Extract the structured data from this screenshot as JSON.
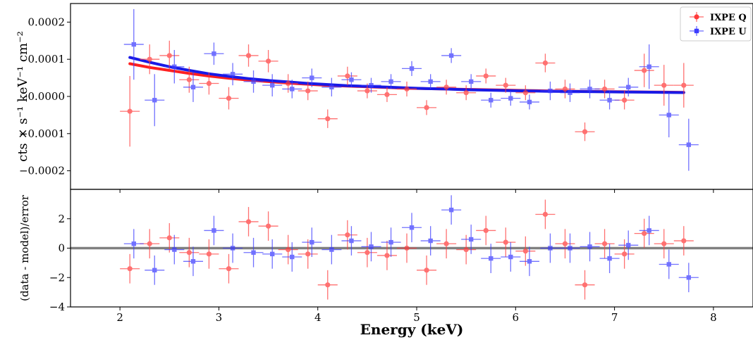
{
  "chart_data": {
    "type": "scatter",
    "xlabel": "Energy (keV)",
    "xlim": [
      1.5,
      8.4
    ],
    "xticks": [
      2,
      3,
      4,
      5,
      6,
      7,
      8
    ],
    "legend": {
      "placement": "top-right"
    },
    "panels": [
      {
        "name": "top",
        "ylabel": "cts × s⁻¹ keV⁻¹ cm⁻²",
        "ylim": [
          -0.00025,
          0.00025
        ],
        "yticks": [
          -0.0002,
          -0.0001,
          0.0,
          0.0001,
          0.0002
        ],
        "ytick_labels": [
          "−0.0002",
          "−0.0001",
          "0.0000",
          "0.0001",
          "0.0002"
        ],
        "series": [
          {
            "name": "IXPE Q",
            "color": "#ff3b3b",
            "marker": "circle",
            "x": [
              2.1,
              2.3,
              2.5,
              2.7,
              2.9,
              3.1,
              3.3,
              3.5,
              3.7,
              3.9,
              4.1,
              4.3,
              4.5,
              4.7,
              4.9,
              5.1,
              5.3,
              5.5,
              5.7,
              5.9,
              6.1,
              6.3,
              6.5,
              6.7,
              6.9,
              7.1,
              7.3,
              7.5,
              7.7
            ],
            "y": [
              -4e-05,
              0.0001,
              0.00011,
              4.5e-05,
              3.5e-05,
              -5e-06,
              0.00011,
              9.5e-05,
              3.5e-05,
              1.5e-05,
              -6e-05,
              5.5e-05,
              1.5e-05,
              5e-06,
              2e-05,
              -3e-05,
              2.5e-05,
              1e-05,
              5.5e-05,
              3e-05,
              1e-05,
              9e-05,
              2e-05,
              -9.5e-05,
              2e-05,
              -1e-05,
              7e-05,
              3e-05,
              3e-05
            ],
            "xerr": 0.1,
            "yerr": [
              9.5e-05,
              4e-05,
              4e-05,
              3.5e-05,
              3e-05,
              3e-05,
              3e-05,
              3e-05,
              2.5e-05,
              2.5e-05,
              2.5e-05,
              2.5e-05,
              2e-05,
              2e-05,
              2e-05,
              2e-05,
              2e-05,
              2e-05,
              2e-05,
              2e-05,
              2e-05,
              2.5e-05,
              2.5e-05,
              2.5e-05,
              2.5e-05,
              2.5e-05,
              4.5e-05,
              5.5e-05,
              6e-05
            ]
          },
          {
            "name": "IXPE U",
            "color": "#3b3bff",
            "marker": "square",
            "x": [
              2.14,
              2.35,
              2.55,
              2.74,
              2.95,
              3.14,
              3.35,
              3.54,
              3.74,
              3.94,
              4.14,
              4.34,
              4.54,
              4.74,
              4.95,
              5.14,
              5.35,
              5.55,
              5.75,
              5.95,
              6.14,
              6.35,
              6.55,
              6.75,
              6.95,
              7.14,
              7.35,
              7.55,
              7.75
            ],
            "y": [
              0.00014,
              -1e-05,
              8e-05,
              2.5e-05,
              0.000115,
              6e-05,
              4e-05,
              3e-05,
              2e-05,
              5e-05,
              2.5e-05,
              4.5e-05,
              3e-05,
              4e-05,
              7.5e-05,
              4e-05,
              0.00011,
              4e-05,
              -1e-05,
              -5e-06,
              -1.5e-05,
              1.5e-05,
              1e-05,
              2e-05,
              -1e-05,
              2.5e-05,
              8e-05,
              -5e-05,
              -0.00013
            ],
            "xerr": 0.1,
            "yerr": [
              9.5e-05,
              7e-05,
              4.5e-05,
              4e-05,
              3e-05,
              3e-05,
              3e-05,
              3e-05,
              2.5e-05,
              2.5e-05,
              2.5e-05,
              2e-05,
              2e-05,
              2e-05,
              2e-05,
              2e-05,
              2e-05,
              2e-05,
              2e-05,
              2e-05,
              2e-05,
              2.5e-05,
              2.5e-05,
              2.5e-05,
              2.5e-05,
              2.5e-05,
              6e-05,
              6e-05,
              7e-05
            ]
          }
        ],
        "model_lines": [
          {
            "color": "#ff2020",
            "x": [
              2.1,
              2.3,
              2.5,
              2.7,
              2.9,
              3.1,
              3.3,
              3.5,
              3.7,
              3.9,
              4.1,
              4.3,
              4.5,
              4.7,
              4.9,
              5.1,
              5.3,
              5.5,
              5.7,
              5.9,
              6.1,
              6.3,
              6.5,
              6.7,
              6.9,
              7.1,
              7.3,
              7.5,
              7.7
            ],
            "y": [
              8.8e-05,
              7.8e-05,
              7e-05,
              6.2e-05,
              5.5e-05,
              4.9e-05,
              4.4e-05,
              4e-05,
              3.6e-05,
              3.3e-05,
              3e-05,
              2.8e-05,
              2.6e-05,
              2.4e-05,
              2.2e-05,
              2.1e-05,
              2e-05,
              1.9e-05,
              1.8e-05,
              1.7e-05,
              1.6e-05,
              1.5e-05,
              1.4e-05,
              1.35e-05,
              1.3e-05,
              1.25e-05,
              1.2e-05,
              1.15e-05,
              1.1e-05
            ]
          },
          {
            "color": "#1a1ae6",
            "x": [
              2.1,
              2.3,
              2.5,
              2.7,
              2.9,
              3.1,
              3.3,
              3.5,
              3.7,
              3.9,
              4.1,
              4.3,
              4.5,
              4.7,
              4.9,
              5.1,
              5.3,
              5.5,
              5.7,
              5.9,
              6.1,
              6.3,
              6.5,
              6.7,
              6.9,
              7.1,
              7.3,
              7.5,
              7.7
            ],
            "y": [
              0.000105,
              9.2e-05,
              8e-05,
              7e-05,
              6.1e-05,
              5.4e-05,
              4.8e-05,
              4.3e-05,
              3.9e-05,
              3.5e-05,
              3.2e-05,
              2.9e-05,
              2.7e-05,
              2.5e-05,
              2.3e-05,
              2.1e-05,
              2e-05,
              1.8e-05,
              1.7e-05,
              1.6e-05,
              1.5e-05,
              1.4e-05,
              1.35e-05,
              1.3e-05,
              1.25e-05,
              1.2e-05,
              1.15e-05,
              1.1e-05,
              1.05e-05
            ]
          }
        ]
      },
      {
        "name": "bottom",
        "ylabel": "(data - model)/error",
        "ylim": [
          -4,
          4
        ],
        "yticks": [
          -4,
          -2,
          0,
          2
        ],
        "ytick_labels": [
          "−4",
          "−2",
          "0",
          "2"
        ],
        "zero_line_color": "#808080",
        "series": [
          {
            "name": "IXPE Q",
            "color": "#ff3b3b",
            "marker": "circle",
            "x": [
              2.1,
              2.3,
              2.5,
              2.7,
              2.9,
              3.1,
              3.3,
              3.5,
              3.7,
              3.9,
              4.1,
              4.3,
              4.5,
              4.7,
              4.9,
              5.1,
              5.3,
              5.5,
              5.7,
              5.9,
              6.1,
              6.3,
              6.5,
              6.7,
              6.9,
              7.1,
              7.3,
              7.5,
              7.7
            ],
            "y": [
              -1.4,
              0.3,
              0.7,
              -0.3,
              -0.4,
              -1.4,
              1.8,
              1.5,
              -0.1,
              -0.4,
              -2.5,
              0.9,
              -0.3,
              -0.5,
              0.0,
              -1.5,
              0.3,
              -0.1,
              1.2,
              0.4,
              -0.2,
              2.3,
              0.3,
              -2.5,
              0.3,
              -0.4,
              1.0,
              0.3,
              0.5
            ],
            "xerr": 0.1,
            "yerr": 1.0
          },
          {
            "name": "IXPE U",
            "color": "#3b3bff",
            "marker": "square",
            "x": [
              2.14,
              2.35,
              2.55,
              2.74,
              2.95,
              3.14,
              3.35,
              3.54,
              3.74,
              3.94,
              4.14,
              4.34,
              4.54,
              4.74,
              4.95,
              5.14,
              5.35,
              5.55,
              5.75,
              5.95,
              6.14,
              6.35,
              6.55,
              6.75,
              6.95,
              7.14,
              7.35,
              7.55,
              7.75
            ],
            "y": [
              0.3,
              -1.5,
              -0.1,
              -0.9,
              1.2,
              0.0,
              -0.3,
              -0.4,
              -0.6,
              0.4,
              -0.1,
              0.5,
              0.1,
              0.4,
              1.4,
              0.5,
              2.6,
              0.6,
              -0.7,
              -0.6,
              -0.9,
              0.0,
              0.0,
              0.1,
              -0.7,
              0.2,
              1.2,
              -1.1,
              -2.0
            ],
            "xerr": 0.1,
            "yerr": 1.0
          }
        ]
      }
    ]
  }
}
